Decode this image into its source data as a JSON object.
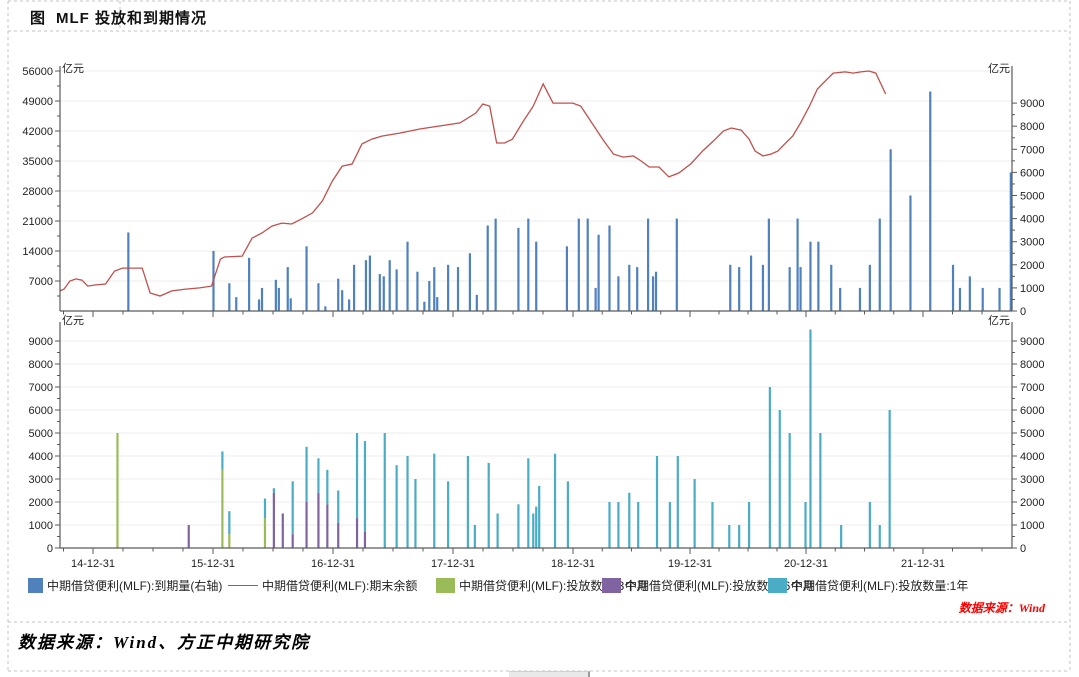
{
  "header": {
    "title_prefix": "图",
    "title": "MLF 投放和到期情况"
  },
  "footer": {
    "wind_source": "数据来源：Wind",
    "bottom_source": "数据来源：Wind、方正中期研究院"
  },
  "colors": {
    "maturity_blue": "#4f81bd",
    "balance_red": "#c0504d",
    "inject_3m_green": "#9bbb59",
    "inject_6m_purple": "#8064a2",
    "inject_1y_teal": "#4bacc6",
    "grid": "#ececec",
    "axis": "#5a5a5a",
    "tick_text": "#222222",
    "table_dash": "#c3c3c3"
  },
  "legend": {
    "items": [
      {
        "label": "中期借贷便利(MLF):到期量(右轴)",
        "type": "bar",
        "color": "#4f81bd"
      },
      {
        "label": "中期借贷便利(MLF):期末余额",
        "type": "line",
        "color": "#c0504d"
      },
      {
        "label": "中期借贷便利(MLF):投放数量:3个月",
        "type": "bar",
        "color": "#9bbb59"
      },
      {
        "label": "中期借贷便利(MLF):投放数量:6个月",
        "type": "bar",
        "color": "#8064a2"
      },
      {
        "label": "中期借贷便利(MLF):投放数量:1年",
        "type": "bar",
        "color": "#4bacc6"
      }
    ]
  },
  "chart_data": [
    {
      "panel": "top",
      "type": "bar",
      "note": "x unit t = months since 2014-09; values in 亿元",
      "left_axis": {
        "unit": "亿元",
        "ticks": [
          7000,
          14000,
          21000,
          28000,
          35000,
          42000,
          49000,
          56000
        ]
      },
      "right_axis": {
        "unit": "亿元",
        "ticks": [
          0,
          1000,
          2000,
          3000,
          4000,
          5000,
          6000,
          7000,
          8000,
          9000
        ]
      },
      "x_axis": {
        "tick_labels": [
          "14-12-31",
          "15-12-31",
          "16-12-31",
          "17-12-31",
          "18-12-31",
          "19-12-31",
          "20-12-31",
          "21-12-31"
        ]
      },
      "series": [
        {
          "name": "中期借贷便利(MLF):到期量(右轴)",
          "type": "bar",
          "axis": "right",
          "color": "#4f81bd",
          "points": [
            [
              6.5,
              3400
            ],
            [
              15.1,
              2600
            ],
            [
              16.7,
              1200
            ],
            [
              17.4,
              600
            ],
            [
              18.7,
              2300
            ],
            [
              19.7,
              500
            ],
            [
              20,
              1000
            ],
            [
              21.4,
              1350
            ],
            [
              21.7,
              1000
            ],
            [
              22.6,
              1900
            ],
            [
              22.9,
              550
            ],
            [
              24.5,
              2800
            ],
            [
              25.7,
              1200
            ],
            [
              26.4,
              200
            ],
            [
              27.7,
              1400
            ],
            [
              28.1,
              900
            ],
            [
              28.8,
              500
            ],
            [
              29.3,
              2000
            ],
            [
              30.5,
              2200
            ],
            [
              30.9,
              2400
            ],
            [
              31.9,
              1600
            ],
            [
              32.3,
              1500
            ],
            [
              32.9,
              2200
            ],
            [
              33.6,
              1800
            ],
            [
              34.7,
              3000
            ],
            [
              35.7,
              1700
            ],
            [
              36.4,
              400
            ],
            [
              36.9,
              1300
            ],
            [
              37.4,
              1900
            ],
            [
              37.7,
              600
            ],
            [
              38.8,
              2000
            ],
            [
              39.8,
              1900
            ],
            [
              41,
              2500
            ],
            [
              41.7,
              700
            ],
            [
              42.8,
              3700
            ],
            [
              43.6,
              4000
            ],
            [
              45.9,
              3600
            ],
            [
              46.9,
              4000
            ],
            [
              47.7,
              3000
            ],
            [
              50.8,
              2800
            ],
            [
              52,
              4000
            ],
            [
              52.9,
              4000
            ],
            [
              53.7,
              1000
            ],
            [
              54,
              3300
            ],
            [
              55.1,
              3700
            ],
            [
              56,
              1500
            ],
            [
              57.1,
              2000
            ],
            [
              57.9,
              1900
            ],
            [
              59,
              4000
            ],
            [
              59.5,
              1500
            ],
            [
              59.8,
              1700
            ],
            [
              61.9,
              4000
            ],
            [
              67.3,
              2000
            ],
            [
              68.2,
              1900
            ],
            [
              69.4,
              2400
            ],
            [
              70.6,
              2000
            ],
            [
              71.2,
              4000
            ],
            [
              73.3,
              1900
            ],
            [
              74.1,
              4000
            ],
            [
              74.4,
              1900
            ],
            [
              75.4,
              3000
            ],
            [
              76.2,
              3000
            ],
            [
              77.5,
              2000
            ],
            [
              78.4,
              1000
            ],
            [
              80.4,
              1000
            ],
            [
              81.4,
              2000
            ],
            [
              82.4,
              4000
            ],
            [
              83.5,
              7000
            ],
            [
              85.5,
              5000
            ],
            [
              87.5,
              9500
            ],
            [
              89.8,
              2000
            ],
            [
              90.5,
              1000
            ],
            [
              91.5,
              1500
            ],
            [
              92.8,
              1000
            ],
            [
              94.5,
              1000
            ],
            [
              95.7,
              6000
            ]
          ]
        },
        {
          "name": "中期借贷便利(MLF):期末余额",
          "type": "line",
          "axis": "left",
          "color": "#c0504d",
          "points": [
            [
              -0.4,
              4700
            ],
            [
              0,
              5100
            ],
            [
              0.6,
              7000
            ],
            [
              1.2,
              7500
            ],
            [
              1.8,
              7200
            ],
            [
              2.4,
              5800
            ],
            [
              3.2,
              6100
            ],
            [
              4.2,
              6300
            ],
            [
              5.1,
              9300
            ],
            [
              5.9,
              10000
            ],
            [
              7.9,
              10000
            ],
            [
              8.7,
              4200
            ],
            [
              9.7,
              3500
            ],
            [
              10.9,
              4700
            ],
            [
              12.3,
              5100
            ],
            [
              13.7,
              5400
            ],
            [
              14.9,
              5800
            ],
            [
              15.8,
              12100
            ],
            [
              16.2,
              12600
            ],
            [
              18,
              12800
            ],
            [
              19,
              17000
            ],
            [
              20,
              18200
            ],
            [
              21,
              19800
            ],
            [
              22,
              20500
            ],
            [
              23,
              20300
            ],
            [
              24,
              21500
            ],
            [
              25.1,
              22900
            ],
            [
              26.1,
              25700
            ],
            [
              27.1,
              30300
            ],
            [
              28.1,
              33800
            ],
            [
              29.1,
              34300
            ],
            [
              30.1,
              39000
            ],
            [
              31.1,
              40100
            ],
            [
              32.1,
              40800
            ],
            [
              33.9,
              41500
            ],
            [
              36,
              42500
            ],
            [
              38,
              43200
            ],
            [
              40,
              43900
            ],
            [
              41.6,
              46200
            ],
            [
              42.3,
              48300
            ],
            [
              43,
              47800
            ],
            [
              43.7,
              39200
            ],
            [
              44.5,
              39200
            ],
            [
              45.3,
              40100
            ],
            [
              46.4,
              44300
            ],
            [
              47.4,
              47800
            ],
            [
              48.4,
              53000
            ],
            [
              49.4,
              48500
            ],
            [
              51.4,
              48500
            ],
            [
              52.2,
              47800
            ],
            [
              53.4,
              43600
            ],
            [
              54.4,
              40100
            ],
            [
              55.5,
              36600
            ],
            [
              56.5,
              35900
            ],
            [
              57.5,
              36200
            ],
            [
              58.3,
              35000
            ],
            [
              59.1,
              33600
            ],
            [
              60.1,
              33600
            ],
            [
              61.1,
              31300
            ],
            [
              62.1,
              32200
            ],
            [
              63.3,
              34300
            ],
            [
              64.5,
              37300
            ],
            [
              65.6,
              39700
            ],
            [
              66.6,
              42000
            ],
            [
              67.4,
              42700
            ],
            [
              68.4,
              42200
            ],
            [
              69.2,
              40100
            ],
            [
              69.8,
              37300
            ],
            [
              70.6,
              36200
            ],
            [
              71.4,
              36600
            ],
            [
              72.1,
              37300
            ],
            [
              72.8,
              39000
            ],
            [
              73.6,
              40800
            ],
            [
              74.4,
              43900
            ],
            [
              75.3,
              47800
            ],
            [
              76.1,
              51800
            ],
            [
              76.9,
              53700
            ],
            [
              77.7,
              55500
            ],
            [
              78.9,
              55800
            ],
            [
              79.7,
              55500
            ],
            [
              80.5,
              55800
            ],
            [
              81.3,
              56000
            ],
            [
              82,
              55500
            ],
            [
              83,
              50600
            ]
          ]
        }
      ]
    },
    {
      "panel": "bottom",
      "type": "stacked-bar",
      "note": "bars = [t, 3个月, 6个月, 1年] stacked bottom-up; values in 亿元",
      "left_axis": {
        "unit": "亿元",
        "ticks": [
          0,
          1000,
          2000,
          3000,
          4000,
          5000,
          6000,
          7000,
          8000,
          9000
        ]
      },
      "right_axis": {
        "unit": "亿元",
        "ticks": [
          0,
          1000,
          2000,
          3000,
          4000,
          5000,
          6000,
          7000,
          8000,
          9000
        ]
      },
      "x_axis": {
        "tick_labels": [
          "14-12-31",
          "15-12-31",
          "16-12-31",
          "17-12-31",
          "18-12-31",
          "19-12-31",
          "20-12-31",
          "21-12-31"
        ]
      },
      "series": [
        {
          "name": "中期借贷便利(MLF):投放数量:3个月",
          "color": "#9bbb59",
          "key": "m3"
        },
        {
          "name": "中期借贷便利(MLF):投放数量:6个月",
          "color": "#8064a2",
          "key": "m6"
        },
        {
          "name": "中期借贷便利(MLF):投放数量:1年",
          "color": "#4bacc6",
          "key": "y1"
        }
      ],
      "bars": [
        [
          5.4,
          5000,
          0,
          0
        ],
        [
          12.6,
          0,
          1000,
          0
        ],
        [
          16,
          3400,
          0,
          800
        ],
        [
          16.7,
          600,
          0,
          1000
        ],
        [
          20.3,
          1300,
          0,
          850
        ],
        [
          21.2,
          0,
          2400,
          200
        ],
        [
          22.1,
          0,
          1500,
          0
        ],
        [
          23.1,
          0,
          600,
          2300
        ],
        [
          24.5,
          0,
          2000,
          2400
        ],
        [
          25.7,
          0,
          2400,
          1500
        ],
        [
          26.6,
          0,
          1900,
          1500
        ],
        [
          27.7,
          0,
          1100,
          1400
        ],
        [
          29.6,
          0,
          1300,
          3700
        ],
        [
          30.4,
          0,
          700,
          3950
        ],
        [
          32.4,
          0,
          0,
          5000
        ],
        [
          33.6,
          0,
          0,
          3600
        ],
        [
          34.7,
          0,
          0,
          4000
        ],
        [
          35.5,
          0,
          0,
          3000
        ],
        [
          37.4,
          0,
          0,
          4100
        ],
        [
          38.8,
          0,
          0,
          2900
        ],
        [
          40.8,
          0,
          0,
          4000
        ],
        [
          41.5,
          0,
          0,
          1000
        ],
        [
          42.9,
          0,
          0,
          3700
        ],
        [
          43.8,
          0,
          0,
          1500
        ],
        [
          45.9,
          0,
          0,
          1900
        ],
        [
          46.9,
          0,
          0,
          3900
        ],
        [
          47.4,
          0,
          0,
          1500
        ],
        [
          47.7,
          0,
          0,
          1800
        ],
        [
          48,
          0,
          0,
          2700
        ],
        [
          49.6,
          0,
          0,
          4100
        ],
        [
          50.9,
          0,
          0,
          2900
        ],
        [
          55.1,
          0,
          0,
          2000
        ],
        [
          56,
          0,
          0,
          2000
        ],
        [
          57.1,
          0,
          0,
          2400
        ],
        [
          58,
          0,
          0,
          2000
        ],
        [
          59.9,
          0,
          0,
          4000
        ],
        [
          61.2,
          0,
          0,
          2000
        ],
        [
          62,
          0,
          0,
          4000
        ],
        [
          63.7,
          0,
          0,
          3000
        ],
        [
          65.5,
          0,
          0,
          2000
        ],
        [
          67.2,
          0,
          0,
          1000
        ],
        [
          68.2,
          0,
          0,
          1000
        ],
        [
          69.2,
          0,
          0,
          2000
        ],
        [
          71.3,
          0,
          0,
          7000
        ],
        [
          72.3,
          0,
          0,
          6000
        ],
        [
          73.3,
          0,
          0,
          5000
        ],
        [
          74.9,
          0,
          0,
          2000
        ],
        [
          75.4,
          0,
          0,
          9500
        ],
        [
          76.4,
          0,
          0,
          5000
        ],
        [
          78.5,
          0,
          0,
          1000
        ],
        [
          81.4,
          0,
          0,
          2000
        ],
        [
          82.4,
          0,
          0,
          1000
        ],
        [
          83.4,
          0,
          0,
          6000
        ]
      ]
    }
  ]
}
